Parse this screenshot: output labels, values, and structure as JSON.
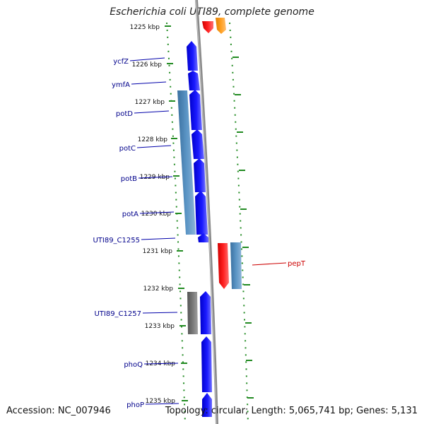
{
  "header": {
    "title": "Escherichia coli UTI89, complete genome"
  },
  "footer": {
    "accession": "Accession: NC_007946",
    "summary": "Topology: circular; Length: 5,065,741 bp; Genes: 5,131"
  },
  "scale": {
    "unit": "kbp",
    "ticks": [
      "1225 kbp",
      "1226 kbp",
      "1227 kbp",
      "1228 kbp",
      "1229 kbp",
      "1230 kbp",
      "1231 kbp",
      "1232 kbp",
      "1233 kbp",
      "1234 kbp",
      "1235 kbp"
    ]
  },
  "gene_labels": [
    "ycfZ",
    "ymfA",
    "potD",
    "potC",
    "potB",
    "potA",
    "UTI89_C1255",
    "UTI89_C1257",
    "phoQ",
    "phoP",
    "pepT"
  ],
  "colors": {
    "cds_forward": "#0000ee",
    "cds_light_blue": "#4682b4",
    "cds_gray": "#666666",
    "cds_red": "#ee0000",
    "cds_orange": "#ff9900",
    "backbone": "#888888",
    "tick_green": "#228b22",
    "label_blue": "#00008b",
    "label_red": "#cc0000"
  }
}
